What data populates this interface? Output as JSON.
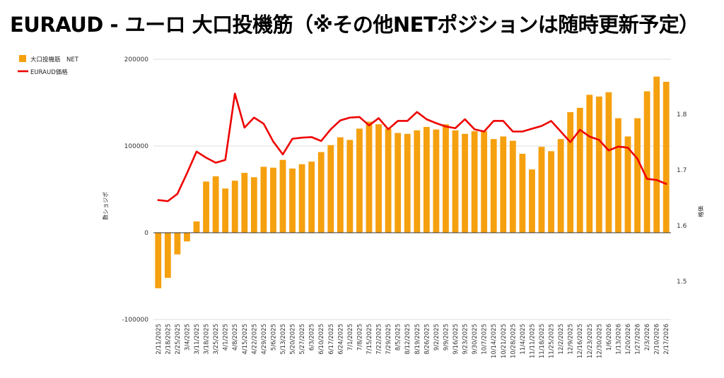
{
  "page": {
    "title": "EURAUD - ユーロ 大口投機筋（※その他NETポジションは随時更新予定）"
  },
  "chart_data": {
    "type": "bar+line",
    "title": "EURAUD - ユーロ 大口投機筋（※その他NETポジションは随時更新予定）",
    "ylabel_left": "数ショジポ",
    "ylabel_right": "格価",
    "yticks_left": [
      "200000",
      "100000",
      "0",
      "-100000"
    ],
    "yticks_right": [
      "1.8",
      "1.7",
      "1.6",
      "1.5"
    ],
    "ylim_left": [
      -100000,
      200000
    ],
    "ylim_right": [
      1.434,
      1.855
    ],
    "legend_position": "top-left",
    "colors": {
      "bar": "#f5a00f",
      "line": "#ee0000"
    },
    "categories": [
      "2/11/2025",
      "2/18/2025",
      "2/25/2025",
      "3/4/2025",
      "3/11/2025",
      "3/18/2025",
      "3/25/2025",
      "4/1/2025",
      "4/8/2025",
      "4/15/2025",
      "4/22/2025",
      "4/29/2025",
      "5/6/2025",
      "5/13/2025",
      "5/20/2025",
      "5/27/2025",
      "6/3/2025",
      "6/10/2025",
      "6/17/2025",
      "6/24/2025",
      "7/1/2025",
      "7/8/2025",
      "7/15/2025",
      "7/22/2025",
      "7/29/2025",
      "8/5/2025",
      "8/12/2025",
      "8/19/2025",
      "8/26/2025",
      "9/2/2025",
      "9/9/2025",
      "9/16/2025",
      "9/23/2025",
      "9/30/2025",
      "10/7/2025",
      "10/14/2025",
      "10/21/2025",
      "10/28/2025",
      "11/4/2025",
      "11/11/2025",
      "11/18/2025",
      "11/25/2025",
      "12/2/2025",
      "12/9/2025",
      "12/16/2025",
      "12/23/2025",
      "12/30/2025",
      "1/6/2026",
      "1/13/2026",
      "1/20/2026",
      "1/27/2026",
      "2/3/2026",
      "2/10/2026",
      "2/17/2026"
    ],
    "xtick_labels": [
      "2/11/2025",
      "2/18/2025",
      "2/25/2025",
      "3/4/2025",
      "3/11/2025",
      "3/18/2025",
      "3/25/2025",
      "4/1/2025",
      "4/8/2025",
      "4/15/2025",
      "4/22/2025",
      "4/29/2025",
      "5/6/2025",
      "5/13/2025",
      "5/20/2025",
      "5/27/2025",
      "6/3/2025",
      "6/10/2025",
      "6/17/2025",
      "6/24/2025",
      "7/1/2025",
      "7/8/2025",
      "7/15/2025",
      "7/22/2025",
      "7/29/2025",
      "8/5/2025",
      "8/12/2025",
      "8/19/2025",
      "8/26/2025",
      "9/2/2025",
      "9/9/2025",
      "9/16/2025",
      "9/23/2025",
      "9/30/2025",
      "10/7/2025",
      "10/14/2025",
      "10/21/2025",
      "10/28/2025",
      "11/4/2025",
      "11/11/2025",
      "11/18/2025",
      "11/25/2025",
      "12/2/2025",
      "12/9/2025",
      "12/16/2025",
      "12/23/2025",
      "12/30/2025",
      "1/6/2026",
      "1/13/2026",
      "1/20/2026",
      "1/27/2026",
      "2/3/2026",
      "2/10/2026",
      "2/17/2026"
    ],
    "series": [
      {
        "name": "大口投機筋　NET",
        "kind": "bar",
        "axis": "left",
        "values": [
          -64000,
          -52000,
          -25000,
          -10000,
          13000,
          59000,
          65000,
          51000,
          60000,
          69000,
          64000,
          76000,
          75000,
          84000,
          74000,
          79000,
          82000,
          93000,
          101000,
          110000,
          107000,
          120000,
          128000,
          125000,
          120000,
          115000,
          114000,
          118000,
          122000,
          119000,
          125000,
          118000,
          114000,
          117000,
          117000,
          108000,
          111000,
          106000,
          91000,
          73000,
          99000,
          94000,
          108000,
          139000,
          144000,
          159000,
          157000,
          162000,
          132000,
          111000,
          132000,
          163000,
          180000,
          174000
        ]
      },
      {
        "name": "EURAUD価格",
        "kind": "line",
        "axis": "right",
        "values": [
          1.646,
          1.644,
          1.657,
          1.694,
          1.733,
          1.722,
          1.713,
          1.718,
          1.837,
          1.776,
          1.794,
          1.783,
          1.751,
          1.728,
          1.756,
          1.758,
          1.759,
          1.752,
          1.773,
          1.789,
          1.794,
          1.795,
          1.78,
          1.793,
          1.773,
          1.788,
          1.788,
          1.804,
          1.791,
          1.784,
          1.778,
          1.775,
          1.791,
          1.773,
          1.769,
          1.788,
          1.788,
          1.769,
          1.769,
          1.774,
          1.779,
          1.788,
          1.769,
          1.75,
          1.772,
          1.76,
          1.754,
          1.735,
          1.742,
          1.74,
          1.72,
          1.684,
          1.682,
          1.675
        ]
      }
    ]
  }
}
